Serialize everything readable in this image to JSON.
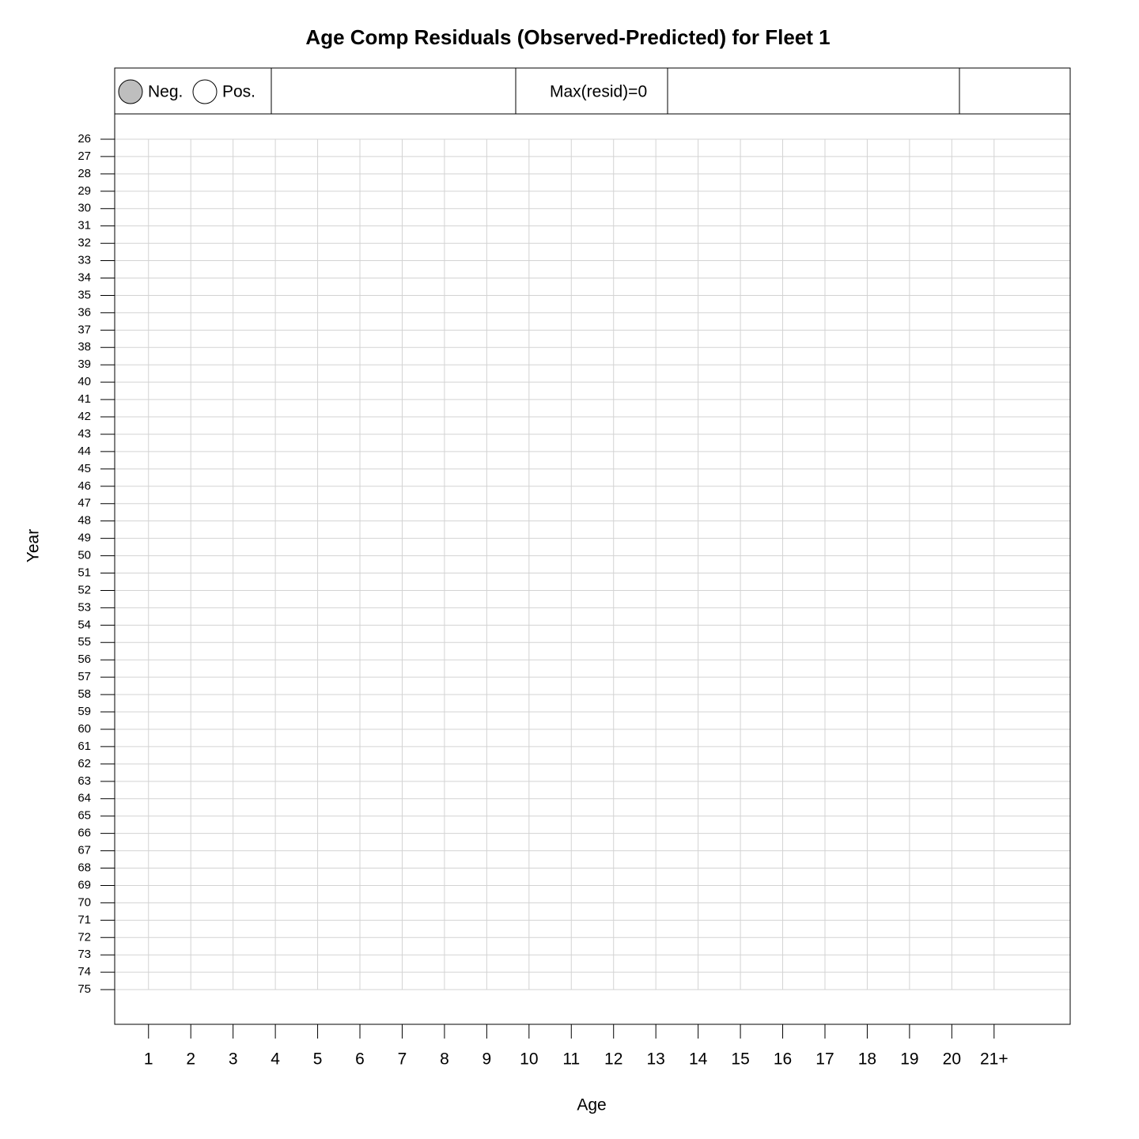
{
  "chart_data": {
    "type": "bubble",
    "title": "Age Comp Residuals (Observed-Predicted) for Fleet 1",
    "x_label": "Age",
    "y_label": "Year",
    "annotation": "Max(resid)=0",
    "series": [
      {
        "name": "Neg.",
        "color": "#bebebe"
      },
      {
        "name": "Pos.",
        "color": "#ffffff"
      }
    ],
    "xlim": [
      0.2,
      22.8
    ],
    "xticks": [
      1,
      2,
      3,
      4,
      5,
      6,
      7,
      8,
      9,
      10,
      11,
      12,
      13,
      14,
      15,
      16,
      17,
      18,
      19,
      20,
      {
        "value": 21,
        "label": "21+"
      }
    ],
    "ylim": [
      77,
      21.9
    ],
    "yticks": [
      26,
      27,
      28,
      29,
      30,
      31,
      32,
      33,
      34,
      35,
      36,
      37,
      38,
      39,
      40,
      41,
      42,
      43,
      44,
      45,
      46,
      47,
      48,
      49,
      50,
      51,
      52,
      53,
      54,
      55,
      56,
      57,
      58,
      59,
      60,
      61,
      62,
      63,
      64,
      65,
      66,
      67,
      68,
      69,
      70,
      71,
      72,
      73,
      74,
      75
    ],
    "grid": true
  }
}
